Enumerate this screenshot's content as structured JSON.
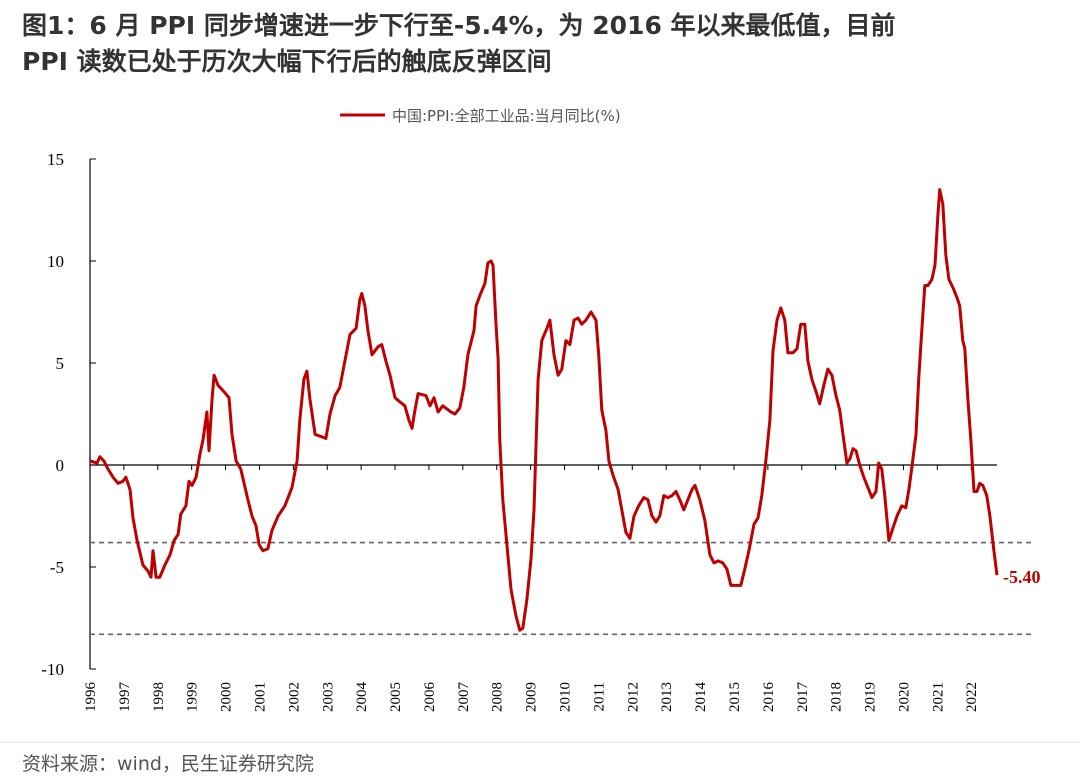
{
  "chart_data": {
    "type": "line",
    "title": [
      "图1：6 月 PPI 同步增速进一步下行至-5.4%，为 2016 年以来最低值，目前",
      "PPI 读数已处于历次大幅下行后的触底反弹区间"
    ],
    "source": "资料来源：wind，民生证券研究院",
    "xlim": [
      1996,
      2022.76
    ],
    "xticks": [
      1996,
      1997,
      1998,
      1999,
      2000,
      2001,
      2002,
      2003,
      2004,
      2005,
      2006,
      2007,
      2008,
      2009,
      2010,
      2011,
      2012,
      2013,
      2014,
      2015,
      2016,
      2017,
      2018,
      2019,
      2020,
      2021,
      2022
    ],
    "ylim": [
      -10,
      15
    ],
    "yticks": [
      15,
      10,
      5,
      0,
      -5,
      -10
    ],
    "reference_lines": [
      -3.8,
      -8.3
    ],
    "reference_color": "#666666",
    "x": [
      1996.0,
      1996.21,
      1996.29,
      1996.41,
      1996.53,
      1996.68,
      1996.83,
      1996.97,
      1997.06,
      1997.18,
      1997.27,
      1997.39,
      1997.56,
      1997.71,
      1997.8,
      1997.86,
      1997.95,
      1998.06,
      1998.21,
      1998.36,
      1998.48,
      1998.6,
      1998.68,
      1998.83,
      1998.92,
      1999.01,
      1999.13,
      1999.24,
      1999.33,
      1999.45,
      1999.51,
      1999.6,
      1999.66,
      1999.78,
      1999.95,
      2000.1,
      2000.19,
      2000.31,
      2000.45,
      2000.66,
      2000.78,
      2000.9,
      2000.99,
      2001.1,
      2001.25,
      2001.37,
      2001.55,
      2001.75,
      2001.96,
      2002.11,
      2002.19,
      2002.31,
      2002.4,
      2002.49,
      2002.64,
      2002.81,
      2002.96,
      2003.08,
      2003.23,
      2003.37,
      2003.52,
      2003.67,
      2003.85,
      2003.96,
      2004.02,
      2004.11,
      2004.2,
      2004.32,
      2004.5,
      2004.61,
      2004.73,
      2004.85,
      2005.0,
      2005.14,
      2005.29,
      2005.41,
      2005.5,
      2005.59,
      2005.68,
      2005.91,
      2006.03,
      2006.15,
      2006.27,
      2006.41,
      2006.65,
      2006.77,
      2006.91,
      2007.03,
      2007.15,
      2007.33,
      2007.39,
      2007.5,
      2007.65,
      2007.74,
      2007.83,
      2007.89,
      2007.98,
      2008.04,
      2008.09,
      2008.18,
      2008.3,
      2008.42,
      2008.57,
      2008.68,
      2008.77,
      2008.89,
      2009.01,
      2009.1,
      2009.22,
      2009.33,
      2009.48,
      2009.57,
      2009.69,
      2009.81,
      2009.92,
      2010.04,
      2010.16,
      2010.28,
      2010.4,
      2010.51,
      2010.63,
      2010.78,
      2010.93,
      2011.01,
      2011.1,
      2011.22,
      2011.31,
      2011.43,
      2011.58,
      2011.69,
      2011.81,
      2011.93,
      2012.05,
      2012.19,
      2012.34,
      2012.46,
      2012.58,
      2012.7,
      2012.81,
      2012.93,
      2013.05,
      2013.17,
      2013.29,
      2013.4,
      2013.52,
      2013.64,
      2013.76,
      2013.85,
      2013.99,
      2014.14,
      2014.29,
      2014.41,
      2014.53,
      2014.67,
      2014.79,
      2014.91,
      2015.09,
      2015.2,
      2015.32,
      2015.44,
      2015.59,
      2015.71,
      2015.82,
      2015.94,
      2016.06,
      2016.15,
      2016.27,
      2016.38,
      2016.5,
      2016.59,
      2016.74,
      2016.86,
      2016.97,
      2017.09,
      2017.18,
      2017.3,
      2017.42,
      2017.53,
      2017.65,
      2017.77,
      2017.89,
      2018.01,
      2018.12,
      2018.24,
      2018.33,
      2018.42,
      2018.51,
      2018.6,
      2018.71,
      2018.83,
      2018.95,
      2019.07,
      2019.19,
      2019.27,
      2019.36,
      2019.45,
      2019.57,
      2019.69,
      2019.81,
      2019.95,
      2020.07,
      2020.16,
      2020.25,
      2020.37,
      2020.45,
      2020.54,
      2020.63,
      2020.72,
      2020.84,
      2020.93,
      2021.01,
      2021.07,
      2021.16,
      2021.25,
      2021.34,
      2021.46,
      2021.58,
      2021.66,
      2021.75,
      2021.81,
      2021.9,
      2021.99,
      2022.08,
      2022.17,
      2022.25,
      2022.34,
      2022.46,
      2022.55,
      2022.67,
      2022.76
    ],
    "series": [
      {
        "name": "中国:PPI:全部工业品:当月同比(%)",
        "color": "#c00000",
        "values": [
          0.2,
          0.1,
          0.4,
          0.2,
          -0.2,
          -0.6,
          -0.9,
          -0.8,
          -0.6,
          -1.2,
          -2.6,
          -3.7,
          -4.9,
          -5.2,
          -5.5,
          -4.2,
          -5.5,
          -5.5,
          -4.9,
          -4.4,
          -3.7,
          -3.4,
          -2.4,
          -2.0,
          -0.8,
          -1.0,
          -0.6,
          0.5,
          1.2,
          2.6,
          0.7,
          3.2,
          4.4,
          3.9,
          3.6,
          3.3,
          1.5,
          0.2,
          -0.2,
          -1.7,
          -2.5,
          -3.0,
          -3.9,
          -4.2,
          -4.1,
          -3.2,
          -2.5,
          -2.0,
          -1.1,
          0.2,
          2.2,
          4.2,
          4.6,
          3.2,
          1.5,
          1.4,
          1.3,
          2.5,
          3.4,
          3.8,
          5.1,
          6.4,
          6.7,
          8.1,
          8.4,
          7.8,
          6.6,
          5.4,
          5.8,
          5.9,
          5.1,
          4.4,
          3.3,
          3.1,
          2.9,
          2.2,
          1.8,
          2.7,
          3.5,
          3.4,
          2.9,
          3.3,
          2.6,
          2.9,
          2.6,
          2.5,
          2.8,
          3.8,
          5.4,
          6.6,
          7.8,
          8.3,
          8.9,
          9.9,
          10.0,
          9.8,
          6.9,
          5.2,
          1.2,
          -1.7,
          -3.9,
          -6.1,
          -7.4,
          -8.1,
          -8.0,
          -6.6,
          -4.6,
          -2.2,
          4.2,
          6.1,
          6.7,
          7.1,
          5.4,
          4.4,
          4.7,
          6.1,
          5.9,
          7.1,
          7.2,
          6.9,
          7.1,
          7.5,
          7.1,
          5.4,
          2.7,
          1.7,
          0.2,
          -0.5,
          -1.2,
          -2.2,
          -3.3,
          -3.6,
          -2.5,
          -2.0,
          -1.6,
          -1.7,
          -2.5,
          -2.8,
          -2.5,
          -1.5,
          -1.6,
          -1.5,
          -1.3,
          -1.7,
          -2.2,
          -1.7,
          -1.2,
          -1.0,
          -1.7,
          -2.7,
          -4.4,
          -4.8,
          -4.7,
          -4.8,
          -5.1,
          -5.9,
          -5.9,
          -5.9,
          -5.1,
          -4.2,
          -2.9,
          -2.6,
          -1.5,
          0.2,
          2.2,
          5.6,
          7.1,
          7.7,
          7.1,
          5.5,
          5.5,
          5.7,
          6.9,
          6.9,
          5.1,
          4.2,
          3.6,
          3.0,
          3.9,
          4.7,
          4.4,
          3.4,
          2.7,
          1.2,
          0.1,
          0.3,
          0.8,
          0.7,
          0.0,
          -0.6,
          -1.1,
          -1.6,
          -1.3,
          0.1,
          -0.2,
          -1.5,
          -3.7,
          -3.1,
          -2.5,
          -2.0,
          -2.1,
          -1.2,
          -0.1,
          1.5,
          4.2,
          6.6,
          8.8,
          8.8,
          9.1,
          9.8,
          12.1,
          13.5,
          12.8,
          10.3,
          9.1,
          8.7,
          8.2,
          7.8,
          6.1,
          5.7,
          3.2,
          1.2,
          -1.3,
          -1.3,
          -0.9,
          -1.0,
          -1.5,
          -2.5,
          -4.2,
          -5.4
        ]
      }
    ],
    "annotations": [
      {
        "x": 2022.76,
        "y": -5.4,
        "label": "-5.40"
      }
    ]
  }
}
